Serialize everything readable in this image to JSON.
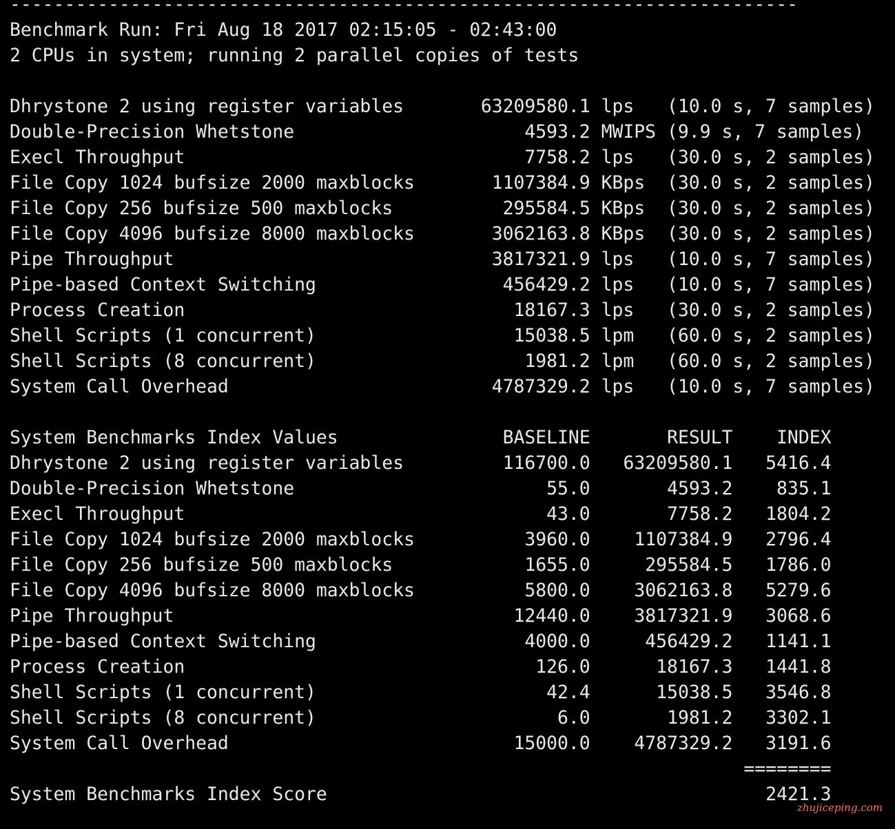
{
  "header": {
    "rule": "------------------------------------------------------------------------",
    "run": "Benchmark Run: Fri Aug 18 2017 02:15:05 - 02:43:00",
    "cpus": "2 CPUs in system; running 2 parallel copies of tests"
  },
  "results": {
    "rows": [
      {
        "name": "Dhrystone 2 using register variables",
        "value": "63209580.1",
        "unit": "lps",
        "detail": "(10.0 s, 7 samples)"
      },
      {
        "name": "Double-Precision Whetstone",
        "value": "4593.2",
        "unit": "MWIPS",
        "detail": "(9.9 s, 7 samples)"
      },
      {
        "name": "Execl Throughput",
        "value": "7758.2",
        "unit": "lps",
        "detail": "(30.0 s, 2 samples)"
      },
      {
        "name": "File Copy 1024 bufsize 2000 maxblocks",
        "value": "1107384.9",
        "unit": "KBps",
        "detail": "(30.0 s, 2 samples)"
      },
      {
        "name": "File Copy 256 bufsize 500 maxblocks",
        "value": "295584.5",
        "unit": "KBps",
        "detail": "(30.0 s, 2 samples)"
      },
      {
        "name": "File Copy 4096 bufsize 8000 maxblocks",
        "value": "3062163.8",
        "unit": "KBps",
        "detail": "(30.0 s, 2 samples)"
      },
      {
        "name": "Pipe Throughput",
        "value": "3817321.9",
        "unit": "lps",
        "detail": "(10.0 s, 7 samples)"
      },
      {
        "name": "Pipe-based Context Switching",
        "value": "456429.2",
        "unit": "lps",
        "detail": "(10.0 s, 7 samples)"
      },
      {
        "name": "Process Creation",
        "value": "18167.3",
        "unit": "lps",
        "detail": "(30.0 s, 2 samples)"
      },
      {
        "name": "Shell Scripts (1 concurrent)",
        "value": "15038.5",
        "unit": "lpm",
        "detail": "(60.0 s, 2 samples)"
      },
      {
        "name": "Shell Scripts (8 concurrent)",
        "value": "1981.2",
        "unit": "lpm",
        "detail": "(60.0 s, 2 samples)"
      },
      {
        "name": "System Call Overhead",
        "value": "4787329.2",
        "unit": "lps",
        "detail": "(10.0 s, 7 samples)"
      }
    ]
  },
  "index": {
    "columns": [
      "System Benchmarks Index Values",
      "BASELINE",
      "RESULT",
      "INDEX"
    ],
    "rows": [
      {
        "name": "Dhrystone 2 using register variables",
        "baseline": "116700.0",
        "result": "63209580.1",
        "index": "5416.4"
      },
      {
        "name": "Double-Precision Whetstone",
        "baseline": "55.0",
        "result": "4593.2",
        "index": "835.1"
      },
      {
        "name": "Execl Throughput",
        "baseline": "43.0",
        "result": "7758.2",
        "index": "1804.2"
      },
      {
        "name": "File Copy 1024 bufsize 2000 maxblocks",
        "baseline": "3960.0",
        "result": "1107384.9",
        "index": "2796.4"
      },
      {
        "name": "File Copy 256 bufsize 500 maxblocks",
        "baseline": "1655.0",
        "result": "295584.5",
        "index": "1786.0"
      },
      {
        "name": "File Copy 4096 bufsize 8000 maxblocks",
        "baseline": "5800.0",
        "result": "3062163.8",
        "index": "5279.6"
      },
      {
        "name": "Pipe Throughput",
        "baseline": "12440.0",
        "result": "3817321.9",
        "index": "3068.6"
      },
      {
        "name": "Pipe-based Context Switching",
        "baseline": "4000.0",
        "result": "456429.2",
        "index": "1141.1"
      },
      {
        "name": "Process Creation",
        "baseline": "126.0",
        "result": "18167.3",
        "index": "1441.8"
      },
      {
        "name": "Shell Scripts (1 concurrent)",
        "baseline": "42.4",
        "result": "15038.5",
        "index": "3546.8"
      },
      {
        "name": "Shell Scripts (8 concurrent)",
        "baseline": "6.0",
        "result": "1981.2",
        "index": "3302.1"
      },
      {
        "name": "System Call Overhead",
        "baseline": "15000.0",
        "result": "4787329.2",
        "index": "3191.6"
      }
    ],
    "separator": "========",
    "score_label": "System Benchmarks Index Score",
    "score": "2421.3"
  },
  "watermark": "zhujiceping.com"
}
